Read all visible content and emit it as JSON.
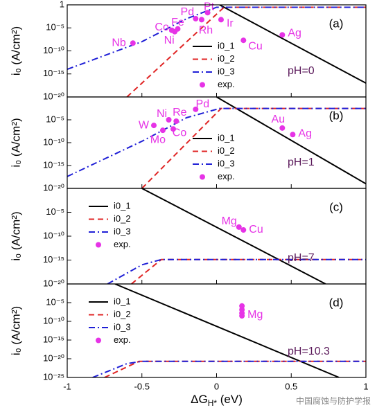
{
  "chart_data": [
    {
      "type": "line",
      "log_y": true,
      "panel_label": "(a)",
      "annotation": "pH=0",
      "ylabel": "i₀ (A/cm²)",
      "xlim": [
        -1,
        1
      ],
      "xticks": [
        -1,
        -0.5,
        0,
        0.5,
        1
      ],
      "ylim": [
        1e-20,
        1
      ],
      "yticks": [
        1,
        {
          "value": 1e-05,
          "label": "10⁻⁵"
        },
        {
          "value": 1e-10,
          "label": "10⁻¹⁰"
        },
        {
          "value": 1e-15,
          "label": "10⁻¹⁵"
        },
        {
          "value": 1e-20,
          "label": "10⁻²⁰"
        }
      ],
      "legend": "center right",
      "series": [
        {
          "name": "i0_1",
          "color": "#000000",
          "dash": "solid",
          "x": [
            0.02,
            1
          ],
          "values": [
            1,
            1e-17
          ]
        },
        {
          "name": "i0_2",
          "color": "#e02424",
          "dash": "dashed",
          "x": [
            -0.6,
            0.05,
            1
          ],
          "values": [
            1e-20,
            0.3,
            0.3
          ]
        },
        {
          "name": "i0_3",
          "color": "#1f1fd6",
          "dash": "dashdot",
          "x": [
            -1,
            -0.5,
            -0.2,
            0,
            1
          ],
          "values": [
            1e-14,
            1e-08,
            0.001,
            0.3,
            0.3
          ]
        }
      ],
      "exp": {
        "name": "exp.",
        "color": "#e633e6",
        "points": [
          {
            "label": "Nb",
            "x": -0.56,
            "value": 5e-09
          },
          {
            "label": "Co",
            "x": -0.3,
            "value": 3e-06
          },
          {
            "label": "Fe",
            "x": -0.26,
            "value": 6e-06
          },
          {
            "label": "Ni",
            "x": -0.28,
            "value": 1.5e-06
          },
          {
            "label": "Pd",
            "x": -0.14,
            "value": 0.001
          },
          {
            "label": "Pt",
            "x": -0.06,
            "value": 0.02
          },
          {
            "label": "Rh",
            "x": -0.1,
            "value": 0.0006
          },
          {
            "label": "Ir",
            "x": 0.03,
            "value": 0.0006
          },
          {
            "label": "Cu",
            "x": 0.18,
            "value": 2e-08
          },
          {
            "label": "Ag",
            "x": 0.44,
            "value": 3e-07
          }
        ]
      }
    },
    {
      "type": "line",
      "log_y": true,
      "panel_label": "(b)",
      "annotation": "pH=1",
      "ylabel": "i₀ (A/cm²)",
      "xlim": [
        -1,
        1
      ],
      "xticks": [
        -1,
        -0.5,
        0,
        0.5,
        1
      ],
      "ylim": [
        1e-20,
        1
      ],
      "yticks": [
        {
          "value": 1e-05,
          "label": "10⁻⁵"
        },
        {
          "value": 1e-10,
          "label": "10⁻¹⁰"
        },
        {
          "value": 1e-15,
          "label": "10⁻¹⁵"
        },
        {
          "value": 1e-20,
          "label": "10⁻²⁰"
        }
      ],
      "legend": "center right",
      "series": [
        {
          "name": "i0_1",
          "color": "#000000",
          "dash": "solid",
          "x": [
            0,
            1
          ],
          "values": [
            1,
            1e-19
          ]
        },
        {
          "name": "i0_2",
          "color": "#e02424",
          "dash": "dashed",
          "x": [
            -0.5,
            0.03,
            1
          ],
          "values": [
            1e-20,
            0.003,
            0.003
          ]
        },
        {
          "name": "i0_3",
          "color": "#1f1fd6",
          "dash": "dashdot",
          "x": [
            -1,
            -0.5,
            -0.2,
            0.02,
            1
          ],
          "values": [
            4e-18,
            2e-10,
            3e-05,
            0.003,
            0.003
          ]
        }
      ],
      "exp": {
        "name": "exp.",
        "color": "#e633e6",
        "points": [
          {
            "label": "W",
            "x": -0.42,
            "value": 6e-07
          },
          {
            "label": "Ni",
            "x": -0.32,
            "value": 1e-05
          },
          {
            "label": "Re",
            "x": -0.27,
            "value": 5e-06
          },
          {
            "label": "Mo",
            "x": -0.36,
            "value": 5e-08
          },
          {
            "label": "Co",
            "x": -0.29,
            "value": 1e-07
          },
          {
            "label": "Pd",
            "x": -0.14,
            "value": 0.002
          },
          {
            "label": "Au",
            "x": 0.44,
            "value": 1.6e-07
          },
          {
            "label": "Ag",
            "x": 0.51,
            "value": 6e-09
          }
        ]
      }
    },
    {
      "type": "line",
      "log_y": true,
      "panel_label": "(c)",
      "annotation": "pH=7",
      "ylabel": "i₀ (A/cm²)",
      "xlim": [
        -1,
        1
      ],
      "xticks": [
        -1,
        -0.5,
        0,
        0.5,
        1
      ],
      "ylim": [
        1e-20,
        1
      ],
      "yticks": [
        {
          "value": 1e-05,
          "label": "10⁻⁵"
        },
        {
          "value": 1e-10,
          "label": "10⁻¹⁰"
        },
        {
          "value": 1e-15,
          "label": "10⁻¹⁵"
        },
        {
          "value": 1e-20,
          "label": "10⁻²⁰"
        }
      ],
      "legend": "upper left",
      "series": [
        {
          "name": "i0_1",
          "color": "#000000",
          "dash": "solid",
          "x": [
            -0.5,
            0.73
          ],
          "values": [
            1,
            1e-20
          ]
        },
        {
          "name": "i0_2",
          "color": "#e02424",
          "dash": "dashed",
          "x": [
            -0.57,
            -0.37,
            1
          ],
          "values": [
            1e-20,
            1.3e-15,
            1.3e-15
          ]
        },
        {
          "name": "i0_3",
          "color": "#1f1fd6",
          "dash": "dashdot",
          "x": [
            -0.73,
            -0.5,
            -0.37,
            1
          ],
          "values": [
            1e-20,
            1e-16,
            1.3e-15,
            1.3e-15
          ]
        }
      ],
      "exp": {
        "name": "exp.",
        "color": "#e633e6",
        "points": [
          {
            "label": "Mg",
            "x": 0.15,
            "value": 8e-09
          },
          {
            "label": "Cu",
            "x": 0.18,
            "value": 2e-09
          }
        ]
      }
    },
    {
      "type": "line",
      "log_y": true,
      "panel_label": "(d)",
      "annotation": "pH=10.3",
      "ylabel": "i₀ (A/cm²)",
      "xlim": [
        -1,
        1
      ],
      "xticks": [
        -1,
        -0.5,
        0,
        0.5,
        1
      ],
      "xticklabels": true,
      "xlabel": {
        "main": "ΔG",
        "sub": "H*",
        "unit": " (eV)"
      },
      "ylim": [
        1e-25,
        1
      ],
      "yticks": [
        {
          "value": 1e-05,
          "label": "10⁻⁵"
        },
        {
          "value": 1e-10,
          "label": "10⁻¹⁰"
        },
        {
          "value": 1e-15,
          "label": "10⁻¹⁵"
        },
        {
          "value": 1e-20,
          "label": "10⁻²⁰"
        },
        {
          "value": 1e-25,
          "label": "10⁻²⁵"
        }
      ],
      "legend": "upper left",
      "series": [
        {
          "name": "i0_1",
          "color": "#000000",
          "dash": "solid",
          "x": [
            -0.68,
            0.82
          ],
          "values": [
            1,
            1e-25
          ]
        },
        {
          "name": "i0_2",
          "color": "#e02424",
          "dash": "dashed",
          "x": [
            -0.75,
            -0.52,
            1
          ],
          "values": [
            1e-25,
            2e-21,
            2e-21
          ]
        },
        {
          "name": "i0_3",
          "color": "#1f1fd6",
          "dash": "dashdot",
          "x": [
            -0.83,
            -0.6,
            -0.5,
            1
          ],
          "values": [
            1e-25,
            5e-22,
            2e-21,
            2e-21
          ]
        }
      ],
      "exp": {
        "name": "exp.",
        "color": "#e633e6",
        "points": [
          {
            "x": 0.17,
            "value": 1.3e-06
          },
          {
            "x": 0.17,
            "value": 1.3e-07
          },
          {
            "x": 0.17,
            "value": 1.6e-08
          },
          {
            "label": "Mg",
            "x": 0.17,
            "value": 3e-09
          }
        ]
      }
    }
  ],
  "watermark": "中国腐蚀与防护学报"
}
